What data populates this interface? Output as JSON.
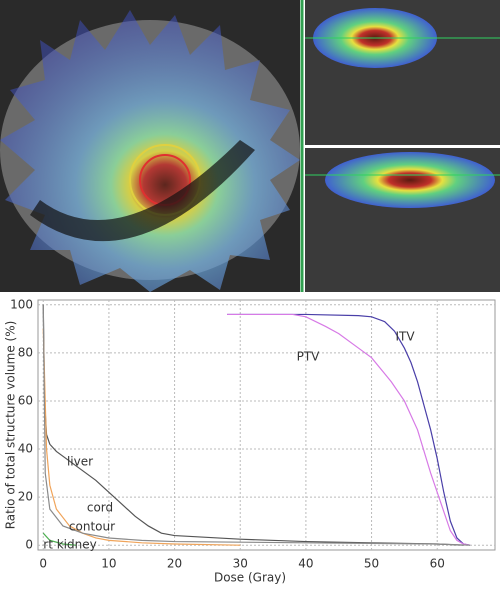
{
  "chart_data": {
    "type": "line",
    "x_label": "Dose (Gray)",
    "y_label": "Ratio of total structure volume (%)",
    "xlim": [
      -0.8,
      68.8
    ],
    "ylim": [
      -2,
      102
    ],
    "xticks": [
      0,
      10,
      20,
      30,
      40,
      50,
      60
    ],
    "yticks": [
      0,
      20,
      40,
      60,
      80,
      100
    ],
    "grid": true,
    "series": [
      {
        "name": "ITV",
        "color": "#4a3fa8",
        "x": [
          28,
          40,
          48,
          50,
          52,
          53.5,
          55,
          56,
          57,
          58,
          59,
          60,
          61,
          62,
          63,
          64,
          65
        ],
        "values": [
          96,
          96,
          95.5,
          95,
          93,
          89,
          82,
          76,
          68,
          58,
          48,
          36,
          22,
          10,
          3,
          0.5,
          0
        ]
      },
      {
        "name": "PTV",
        "color": "#d77ae6",
        "x": [
          28,
          38,
          40,
          43,
          45,
          48,
          50,
          53,
          55,
          57,
          59,
          60,
          61,
          62,
          63,
          64,
          65
        ],
        "values": [
          96,
          96,
          95,
          91,
          88,
          82,
          78,
          68,
          60,
          48,
          30,
          22,
          14,
          6,
          2,
          0.5,
          0
        ]
      },
      {
        "name": "liver",
        "color": "#555555",
        "x": [
          0,
          0.2,
          0.5,
          1,
          2,
          4,
          6,
          8,
          10,
          12,
          14,
          16,
          18,
          20,
          30,
          40,
          50,
          60,
          64
        ],
        "values": [
          100,
          60,
          46,
          42,
          39,
          35,
          31,
          27,
          22,
          17,
          12,
          8,
          5,
          4,
          2.5,
          1.5,
          1,
          0.5,
          0
        ]
      },
      {
        "name": "cord",
        "color": "#f0a45a",
        "x": [
          0,
          0.5,
          1,
          2,
          4,
          6,
          8,
          10,
          15,
          20,
          30
        ],
        "values": [
          90,
          40,
          25,
          15,
          8,
          5,
          3,
          2,
          1,
          0.5,
          0
        ]
      },
      {
        "name": "contour",
        "color": "#8a8a8a",
        "x": [
          0,
          0.3,
          1,
          3,
          6,
          10,
          15,
          20,
          40,
          60,
          65
        ],
        "values": [
          100,
          30,
          15,
          8,
          5,
          3,
          2,
          1.5,
          1,
          0.5,
          0
        ]
      },
      {
        "name": "rt kidney",
        "color": "#4caf50",
        "x": [
          0,
          1,
          3,
          5
        ],
        "values": [
          5,
          2,
          0.5,
          0
        ]
      }
    ]
  }
}
